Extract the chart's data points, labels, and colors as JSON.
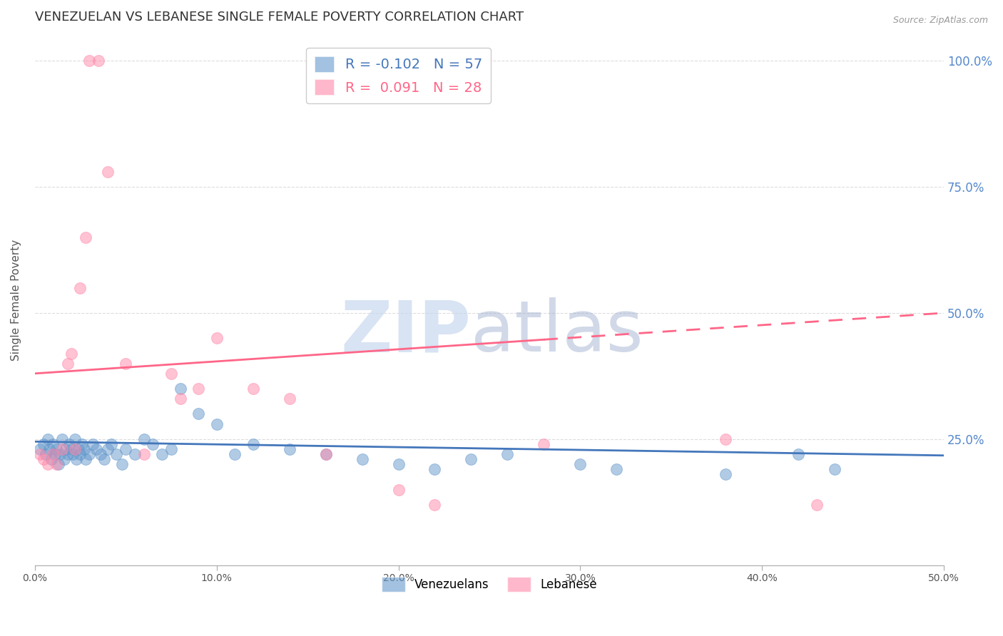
{
  "title": "VENEZUELAN VS LEBANESE SINGLE FEMALE POVERTY CORRELATION CHART",
  "source": "Source: ZipAtlas.com",
  "ylabel": "Single Female Poverty",
  "xlim": [
    0.0,
    0.5
  ],
  "ylim": [
    0.0,
    1.05
  ],
  "xticks": [
    0.0,
    0.1,
    0.2,
    0.3,
    0.4,
    0.5
  ],
  "xticklabels": [
    "0.0%",
    "10.0%",
    "20.0%",
    "30.0%",
    "40.0%",
    "50.0%"
  ],
  "yticks_right": [
    0.25,
    0.5,
    0.75,
    1.0
  ],
  "yticklabels_right": [
    "25.0%",
    "50.0%",
    "75.0%",
    "100.0%"
  ],
  "grid_yticks": [
    0.0,
    0.25,
    0.5,
    0.75,
    1.0
  ],
  "venezuelan_color": "#6699CC",
  "lebanese_color": "#FF88AA",
  "trend_blue_color": "#4477BB",
  "trend_pink_color": "#FF6688",
  "r_venezuelan": -0.102,
  "n_venezuelan": 57,
  "r_lebanese": 0.091,
  "n_lebanese": 28,
  "venezuelan_x": [
    0.003,
    0.005,
    0.006,
    0.007,
    0.008,
    0.009,
    0.01,
    0.011,
    0.012,
    0.013,
    0.014,
    0.015,
    0.016,
    0.017,
    0.018,
    0.019,
    0.02,
    0.021,
    0.022,
    0.023,
    0.024,
    0.025,
    0.026,
    0.027,
    0.028,
    0.03,
    0.032,
    0.034,
    0.036,
    0.038,
    0.04,
    0.042,
    0.045,
    0.048,
    0.05,
    0.055,
    0.06,
    0.065,
    0.07,
    0.075,
    0.08,
    0.09,
    0.1,
    0.11,
    0.12,
    0.14,
    0.16,
    0.18,
    0.2,
    0.22,
    0.24,
    0.26,
    0.3,
    0.32,
    0.38,
    0.42,
    0.44
  ],
  "venezuelan_y": [
    0.23,
    0.24,
    0.22,
    0.25,
    0.23,
    0.21,
    0.24,
    0.22,
    0.23,
    0.2,
    0.22,
    0.25,
    0.21,
    0.23,
    0.22,
    0.24,
    0.23,
    0.22,
    0.25,
    0.21,
    0.23,
    0.22,
    0.24,
    0.23,
    0.21,
    0.22,
    0.24,
    0.23,
    0.22,
    0.21,
    0.23,
    0.24,
    0.22,
    0.2,
    0.23,
    0.22,
    0.25,
    0.24,
    0.22,
    0.23,
    0.35,
    0.3,
    0.28,
    0.22,
    0.24,
    0.23,
    0.22,
    0.21,
    0.2,
    0.19,
    0.21,
    0.22,
    0.2,
    0.19,
    0.18,
    0.22,
    0.19
  ],
  "lebanese_x": [
    0.003,
    0.005,
    0.007,
    0.01,
    0.012,
    0.015,
    0.018,
    0.02,
    0.022,
    0.025,
    0.028,
    0.03,
    0.035,
    0.04,
    0.05,
    0.06,
    0.075,
    0.08,
    0.09,
    0.1,
    0.12,
    0.14,
    0.16,
    0.2,
    0.22,
    0.28,
    0.38,
    0.43
  ],
  "lebanese_y": [
    0.22,
    0.21,
    0.2,
    0.22,
    0.2,
    0.23,
    0.4,
    0.42,
    0.23,
    0.55,
    0.65,
    1.0,
    1.0,
    0.78,
    0.4,
    0.22,
    0.38,
    0.33,
    0.35,
    0.45,
    0.35,
    0.33,
    0.22,
    0.15,
    0.12,
    0.24,
    0.25,
    0.12
  ],
  "trend_pink_solid_end": 0.28,
  "trend_pink_intercept": 0.38,
  "trend_pink_slope": 0.24,
  "trend_blue_intercept": 0.245,
  "trend_blue_slope": -0.055,
  "background_color": "#ffffff",
  "grid_color": "#DDDDDD",
  "title_fontsize": 13,
  "axis_label_fontsize": 11,
  "tick_color_right": "#5588CC",
  "watermark_zip_color": "#C8D8EE",
  "watermark_atlas_color": "#99AACC"
}
